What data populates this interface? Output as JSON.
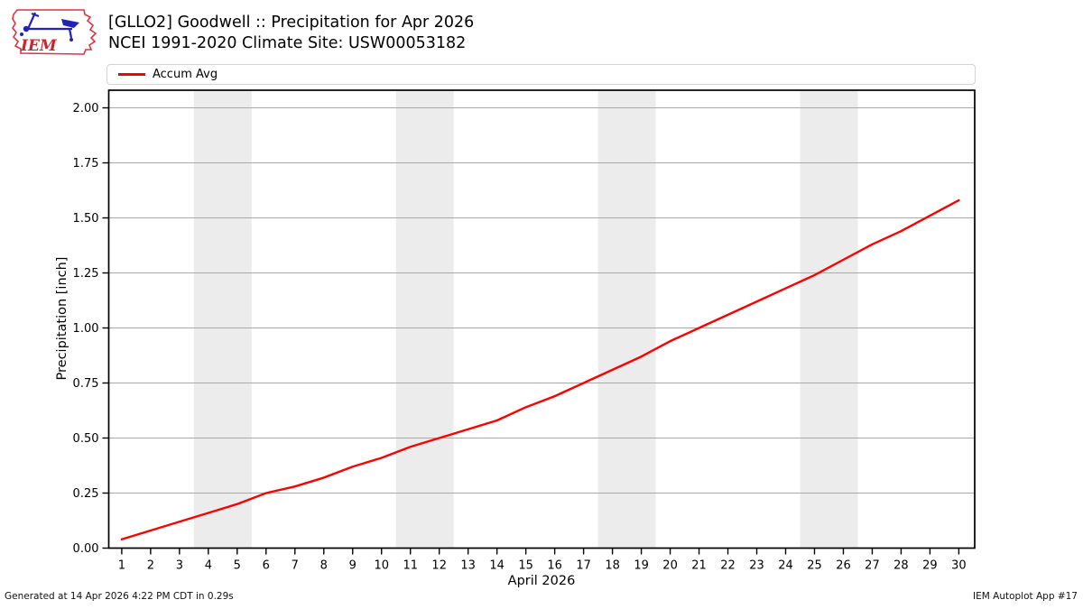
{
  "logo": {
    "text": "IEM",
    "name": "iem-iowa-logo"
  },
  "footer": {
    "left": "Generated at 14 Apr 2026 4:22 PM CDT in 0.29s",
    "right": "IEM Autoplot App #17"
  },
  "chart_data": {
    "type": "line",
    "title": "[GLLO2] Goodwell :: Precipitation for Apr 2026",
    "subtitle": "NCEI 1991-2020 Climate Site: USW00053182",
    "xlabel": "April 2026",
    "ylabel": "Precipitation [inch]",
    "x": [
      1,
      2,
      3,
      4,
      5,
      6,
      7,
      8,
      9,
      10,
      11,
      12,
      13,
      14,
      15,
      16,
      17,
      18,
      19,
      20,
      21,
      22,
      23,
      24,
      25,
      26,
      27,
      28,
      29,
      30
    ],
    "series": [
      {
        "name": "Accum Avg",
        "color": "#ff0000",
        "values": [
          0.04,
          0.08,
          0.12,
          0.16,
          0.2,
          0.25,
          0.28,
          0.32,
          0.37,
          0.41,
          0.46,
          0.5,
          0.54,
          0.58,
          0.64,
          0.69,
          0.75,
          0.81,
          0.87,
          0.94,
          1.0,
          1.06,
          1.12,
          1.18,
          1.24,
          1.31,
          1.38,
          1.44,
          1.51,
          1.58
        ]
      }
    ],
    "xlim": [
      0.55,
      30.55
    ],
    "ylim": [
      0,
      2.08
    ],
    "x_ticks": [
      1,
      2,
      3,
      4,
      5,
      6,
      7,
      8,
      9,
      10,
      11,
      12,
      13,
      14,
      15,
      16,
      17,
      18,
      19,
      20,
      21,
      22,
      23,
      24,
      25,
      26,
      27,
      28,
      29,
      30
    ],
    "y_ticks": [
      0,
      0.25,
      0.5,
      0.75,
      1.0,
      1.25,
      1.5,
      1.75,
      2.0
    ],
    "y_tick_decimals": 2,
    "grid": "horizontal",
    "legend_position": "top",
    "weekend_shading_day_spans": [
      [
        3.5,
        5.5
      ],
      [
        10.5,
        12.5
      ],
      [
        17.5,
        19.5
      ],
      [
        24.5,
        26.5
      ]
    ],
    "colors": {
      "line": "#ff0000",
      "weekend_band": "#ececec",
      "grid": "#a9a9a9",
      "axis": "#000000"
    }
  }
}
